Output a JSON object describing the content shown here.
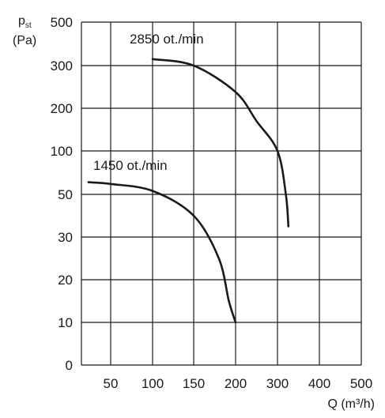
{
  "chart_data": {
    "type": "line",
    "y_axis_label_main": "p",
    "y_axis_label_sub": "st",
    "y_axis_unit": "(Pa)",
    "x_axis_label": "Q (m³/h)",
    "x_ticks": [
      "50",
      "100",
      "150",
      "200",
      "300",
      "400",
      "500"
    ],
    "y_ticks": [
      "500",
      "300",
      "200",
      "100",
      "50",
      "30",
      "20",
      "10",
      "0"
    ],
    "grid": true,
    "series": [
      {
        "name": "2850 ot./min",
        "points": [
          [
            100,
            330
          ],
          [
            150,
            300
          ],
          [
            200,
            238
          ],
          [
            250,
            170
          ],
          [
            300,
            100
          ],
          [
            320,
            50
          ],
          [
            326,
            35
          ]
        ]
      },
      {
        "name": "1450 ot./min",
        "points": [
          [
            12,
            64
          ],
          [
            50,
            62
          ],
          [
            100,
            54
          ],
          [
            150,
            40
          ],
          [
            180,
            25
          ],
          [
            192,
            15
          ],
          [
            200,
            10
          ]
        ]
      }
    ]
  }
}
